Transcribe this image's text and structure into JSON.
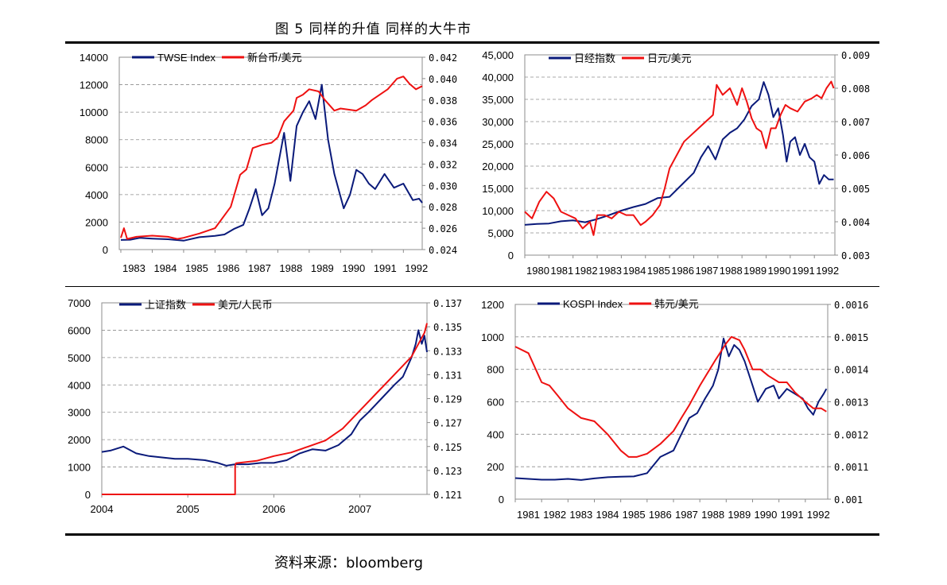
{
  "figure": {
    "title": "图 5   同样的升值 同样的大牛市",
    "source": "资料来源：bloomberg"
  },
  "colors": {
    "index": "#0a1a7a",
    "fx": "#ee1111"
  },
  "chart_data": [
    {
      "type": "line",
      "legend_position": "top-left",
      "series": [
        {
          "name": "TWSE Index",
          "axis": "left",
          "x": [
            1983.0,
            1983.3,
            1983.6,
            1984.0,
            1984.5,
            1985.0,
            1985.5,
            1986.0,
            1986.3,
            1986.6,
            1986.9,
            1987.1,
            1987.3,
            1987.5,
            1987.7,
            1987.9,
            1988.2,
            1988.4,
            1988.6,
            1988.8,
            1989.0,
            1989.2,
            1989.4,
            1989.6,
            1989.8,
            1990.1,
            1990.3,
            1990.5,
            1990.7,
            1990.9,
            1991.1,
            1991.4,
            1991.7,
            1992.0,
            1992.3,
            1992.5,
            1992.6
          ],
          "values": [
            700,
            720,
            850,
            800,
            750,
            650,
            900,
            1000,
            1100,
            1500,
            1800,
            3000,
            4400,
            2500,
            3000,
            4800,
            8500,
            5000,
            9000,
            10000,
            10800,
            9500,
            12000,
            8000,
            5500,
            3000,
            4000,
            5800,
            5500,
            4800,
            4400,
            5500,
            4500,
            4800,
            3600,
            3700,
            3400
          ]
        },
        {
          "name": "新台币/美元",
          "axis": "right",
          "x": [
            1983.0,
            1983.1,
            1983.2,
            1983.5,
            1984.0,
            1984.5,
            1984.8,
            1985.0,
            1985.5,
            1986.0,
            1986.5,
            1986.8,
            1987.0,
            1987.2,
            1987.5,
            1987.8,
            1988.0,
            1988.2,
            1988.5,
            1988.6,
            1988.8,
            1989.0,
            1989.3,
            1989.5,
            1989.8,
            1990.0,
            1990.5,
            1990.8,
            1991.0,
            1991.5,
            1991.8,
            1992.0,
            1992.2,
            1992.4,
            1992.6
          ],
          "values": [
            0.0251,
            0.026,
            0.025,
            0.0252,
            0.0253,
            0.0252,
            0.025,
            0.0251,
            0.0255,
            0.026,
            0.028,
            0.031,
            0.0315,
            0.0335,
            0.0338,
            0.034,
            0.0345,
            0.036,
            0.037,
            0.0382,
            0.0385,
            0.039,
            0.0388,
            0.038,
            0.037,
            0.0372,
            0.037,
            0.0375,
            0.038,
            0.039,
            0.04,
            0.0402,
            0.0395,
            0.039,
            0.0393
          ]
        }
      ],
      "x_ticks": [
        "1983",
        "1984",
        "1985",
        "1986",
        "1987",
        "1988",
        "1989",
        "1990",
        "1991",
        "1992"
      ],
      "left_ticks": [
        "0",
        "2000",
        "4000",
        "6000",
        "8000",
        "10000",
        "12000",
        "14000"
      ],
      "right_ticks": [
        "0.024",
        "0.026",
        "0.028",
        "0.030",
        "0.032",
        "0.034",
        "0.036",
        "0.038",
        "0.040",
        "0.042"
      ],
      "xlim": [
        1982.95,
        1992.6
      ],
      "ylim_left": [
        0,
        14000
      ],
      "ylim_right": [
        0.024,
        0.042
      ]
    },
    {
      "type": "line",
      "legend_position": "top-left",
      "series": [
        {
          "name": "日经指数",
          "axis": "left",
          "x": [
            1980.0,
            1980.5,
            1981.0,
            1981.5,
            1982.0,
            1982.5,
            1983.0,
            1983.5,
            1984.0,
            1984.5,
            1985.0,
            1985.5,
            1986.0,
            1986.5,
            1987.0,
            1987.3,
            1987.6,
            1987.9,
            1988.2,
            1988.5,
            1988.8,
            1989.1,
            1989.4,
            1989.7,
            1989.9,
            1990.1,
            1990.3,
            1990.5,
            1990.7,
            1990.85,
            1991.0,
            1991.2,
            1991.4,
            1991.6,
            1991.8,
            1992.0,
            1992.2,
            1992.4,
            1992.6,
            1992.8
          ],
          "values": [
            6800,
            7000,
            7100,
            7600,
            7800,
            7400,
            8100,
            9000,
            10000,
            10800,
            11500,
            12800,
            13100,
            15800,
            18500,
            22000,
            24500,
            21500,
            26000,
            27500,
            28500,
            30500,
            33500,
            35000,
            38900,
            36000,
            31000,
            33000,
            27000,
            21000,
            25500,
            26500,
            22500,
            25000,
            22000,
            21000,
            16000,
            18000,
            17000,
            17000
          ]
        },
        {
          "name": "日元/美元",
          "axis": "right",
          "x": [
            1980.0,
            1980.3,
            1980.6,
            1980.9,
            1981.2,
            1981.5,
            1981.8,
            1982.1,
            1982.4,
            1982.7,
            1982.85,
            1983.0,
            1983.3,
            1983.6,
            1983.9,
            1984.2,
            1984.5,
            1984.8,
            1985.0,
            1985.3,
            1985.6,
            1985.8,
            1986.0,
            1986.3,
            1986.6,
            1986.9,
            1987.2,
            1987.5,
            1987.8,
            1987.95,
            1988.2,
            1988.5,
            1988.8,
            1989.0,
            1989.2,
            1989.4,
            1989.6,
            1989.8,
            1990.0,
            1990.2,
            1990.4,
            1990.6,
            1990.8,
            1991.0,
            1991.3,
            1991.6,
            1991.9,
            1992.1,
            1992.3,
            1992.5,
            1992.7,
            1992.8
          ],
          "values": [
            0.0043,
            0.0041,
            0.0046,
            0.0049,
            0.0047,
            0.0043,
            0.0042,
            0.0041,
            0.0038,
            0.004,
            0.0036,
            0.0042,
            0.0042,
            0.0041,
            0.0043,
            0.0042,
            0.0042,
            0.0039,
            0.004,
            0.0042,
            0.0045,
            0.005,
            0.0056,
            0.006,
            0.0064,
            0.0066,
            0.0068,
            0.007,
            0.0072,
            0.0081,
            0.0078,
            0.008,
            0.0075,
            0.008,
            0.0076,
            0.0071,
            0.0068,
            0.0067,
            0.0062,
            0.0068,
            0.0068,
            0.0072,
            0.0075,
            0.0074,
            0.0073,
            0.0076,
            0.0077,
            0.0078,
            0.0077,
            0.008,
            0.0082,
            0.008
          ]
        }
      ],
      "x_ticks": [
        "1980",
        "1981",
        "1982",
        "1983",
        "1984",
        "1985",
        "1986",
        "1987",
        "1988",
        "1989",
        "1990",
        "1991",
        "1992"
      ],
      "left_ticks": [
        "0",
        "5,000",
        "10,000",
        "15,000",
        "20,000",
        "25,000",
        "30,000",
        "35,000",
        "40,000",
        "45,000"
      ],
      "right_ticks": [
        "0.003",
        "0.004",
        "0.005",
        "0.006",
        "0.007",
        "0.008",
        "0.009"
      ],
      "xlim": [
        1980.0,
        1992.85
      ],
      "ylim_left": [
        0,
        45000
      ],
      "ylim_right": [
        0.003,
        0.009
      ]
    },
    {
      "type": "line",
      "legend_position": "top-left",
      "series": [
        {
          "name": "上证指数",
          "axis": "left",
          "x": [
            2004.0,
            2004.1,
            2004.25,
            2004.4,
            2004.55,
            2004.7,
            2004.85,
            2005.0,
            2005.2,
            2005.35,
            2005.45,
            2005.55,
            2005.7,
            2005.85,
            2006.0,
            2006.15,
            2006.3,
            2006.45,
            2006.6,
            2006.75,
            2006.9,
            2007.0,
            2007.1,
            2007.25,
            2007.4,
            2007.5,
            2007.6,
            2007.65,
            2007.68,
            2007.72,
            2007.75,
            2007.78
          ],
          "values": [
            1550,
            1600,
            1750,
            1500,
            1400,
            1350,
            1300,
            1300,
            1250,
            1150,
            1050,
            1100,
            1100,
            1150,
            1150,
            1250,
            1500,
            1650,
            1600,
            1800,
            2200,
            2700,
            3000,
            3500,
            4000,
            4300,
            5000,
            5500,
            6000,
            5500,
            5800,
            5200
          ]
        },
        {
          "name": "美元/人民币",
          "axis": "right",
          "x": [
            2004.0,
            2005.55,
            2005.55,
            2005.56,
            2005.8,
            2006.0,
            2006.2,
            2006.4,
            2006.6,
            2006.8,
            2007.0,
            2007.2,
            2007.4,
            2007.6,
            2007.75,
            2007.78
          ],
          "values": [
            0.121,
            0.121,
            0.1234,
            0.1236,
            0.1238,
            0.1242,
            0.1245,
            0.125,
            0.1255,
            0.1265,
            0.128,
            0.1295,
            0.131,
            0.1325,
            0.1345,
            0.1353
          ]
        }
      ],
      "x_ticks": [
        "2004",
        "2005",
        "2006",
        "2007"
      ],
      "left_ticks": [
        "0",
        "1000",
        "2000",
        "3000",
        "4000",
        "5000",
        "6000",
        "7000"
      ],
      "right_ticks": [
        "0.121",
        "0.123",
        "0.125",
        "0.127",
        "0.129",
        "0.131",
        "0.133",
        "0.135",
        "0.137"
      ],
      "xlim": [
        2004.0,
        2007.78
      ],
      "ylim_left": [
        0,
        7000
      ],
      "ylim_right": [
        0.121,
        0.137
      ]
    },
    {
      "type": "line",
      "legend_position": "top-left",
      "series": [
        {
          "name": "KOSPI Index",
          "axis": "left",
          "x": [
            1981.0,
            1981.5,
            1982.0,
            1982.5,
            1983.0,
            1983.5,
            1984.0,
            1984.5,
            1985.0,
            1985.5,
            1986.0,
            1986.5,
            1987.0,
            1987.3,
            1987.6,
            1987.9,
            1988.2,
            1988.5,
            1988.7,
            1988.9,
            1989.1,
            1989.3,
            1989.5,
            1989.7,
            1990.0,
            1990.2,
            1990.5,
            1990.8,
            1991.0,
            1991.3,
            1991.6,
            1991.9,
            1992.1,
            1992.3,
            1992.5,
            1992.7,
            1992.8
          ],
          "values": [
            130,
            125,
            120,
            120,
            125,
            118,
            128,
            135,
            138,
            140,
            160,
            260,
            300,
            400,
            500,
            530,
            620,
            700,
            800,
            990,
            880,
            950,
            920,
            850,
            700,
            600,
            680,
            700,
            620,
            680,
            650,
            620,
            560,
            520,
            600,
            650,
            680
          ]
        },
        {
          "name": "韩元/美元",
          "axis": "right",
          "x": [
            1981.0,
            1981.5,
            1982.0,
            1982.3,
            1982.6,
            1983.0,
            1983.5,
            1984.0,
            1984.5,
            1985.0,
            1985.3,
            1985.6,
            1986.0,
            1986.5,
            1987.0,
            1987.3,
            1987.6,
            1988.0,
            1988.3,
            1988.6,
            1989.0,
            1989.2,
            1989.5,
            1989.7,
            1990.0,
            1990.3,
            1990.6,
            1991.0,
            1991.3,
            1991.6,
            1992.0,
            1992.3,
            1992.6,
            1992.8
          ],
          "values": [
            0.00147,
            0.00145,
            0.00136,
            0.00135,
            0.00132,
            0.00128,
            0.00125,
            0.00124,
            0.0012,
            0.00115,
            0.00113,
            0.00113,
            0.00114,
            0.00117,
            0.00121,
            0.00125,
            0.00129,
            0.00135,
            0.00139,
            0.00143,
            0.00148,
            0.0015,
            0.00149,
            0.00146,
            0.0014,
            0.0014,
            0.00138,
            0.00136,
            0.00136,
            0.00133,
            0.0013,
            0.00128,
            0.00128,
            0.00127
          ]
        }
      ],
      "x_ticks": [
        "1981",
        "1982",
        "1983",
        "1984",
        "1985",
        "1986",
        "1987",
        "1988",
        "1989",
        "1990",
        "1991",
        "1992"
      ],
      "left_ticks": [
        "0",
        "200",
        "400",
        "600",
        "800",
        "1000",
        "1200"
      ],
      "right_ticks": [
        "0.001",
        "0.0011",
        "0.0012",
        "0.0013",
        "0.0014",
        "0.0015",
        "0.0016"
      ],
      "xlim": [
        1981.0,
        1992.85
      ],
      "ylim_left": [
        0,
        1200
      ],
      "ylim_right": [
        0.001,
        0.0016
      ]
    }
  ]
}
